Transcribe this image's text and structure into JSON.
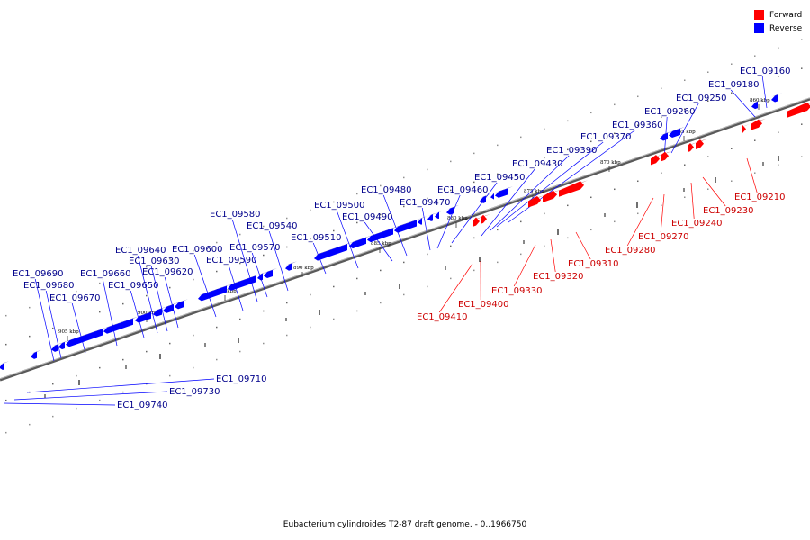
{
  "caption": "Eubacterium cylindroides T2-87 draft genome. - 0..1966750",
  "legend": {
    "forward": {
      "label": "Forward",
      "color": "#ff0000"
    },
    "reverse": {
      "label": "Reverse",
      "color": "#0000ff"
    }
  },
  "colors": {
    "forward": "#ff0000",
    "reverse": "#0000ff",
    "forward_label": "#cc0000",
    "reverse_label": "#00008b",
    "backbone": "#808080"
  },
  "scale_labels": [
    "860 kbp",
    "865 kbp",
    "870 kbp",
    "875 kbp",
    "880 kbp",
    "885 kbp",
    "890 kbp",
    "895 kbp",
    "900 kbp",
    "905 kbp"
  ],
  "genes": {
    "forward": [
      "EC1_09210",
      "EC1_09230",
      "EC1_09240",
      "EC1_09270",
      "EC1_09280",
      "EC1_09310",
      "EC1_09320",
      "EC1_09330",
      "EC1_09400",
      "EC1_09410"
    ],
    "reverse": [
      "EC1_09160",
      "EC1_09180",
      "EC1_09250",
      "EC1_09260",
      "EC1_09360",
      "EC1_09370",
      "EC1_09390",
      "EC1_09430",
      "EC1_09450",
      "EC1_09460",
      "EC1_09470",
      "EC1_09480",
      "EC1_09490",
      "EC1_09500",
      "EC1_09510",
      "EC1_09540",
      "EC1_09570",
      "EC1_09580",
      "EC1_09590",
      "EC1_09600",
      "EC1_09620",
      "EC1_09630",
      "EC1_09640",
      "EC1_09650",
      "EC1_09660",
      "EC1_09670",
      "EC1_09680",
      "EC1_09690",
      "EC1_09710",
      "EC1_09730",
      "EC1_09740"
    ]
  }
}
